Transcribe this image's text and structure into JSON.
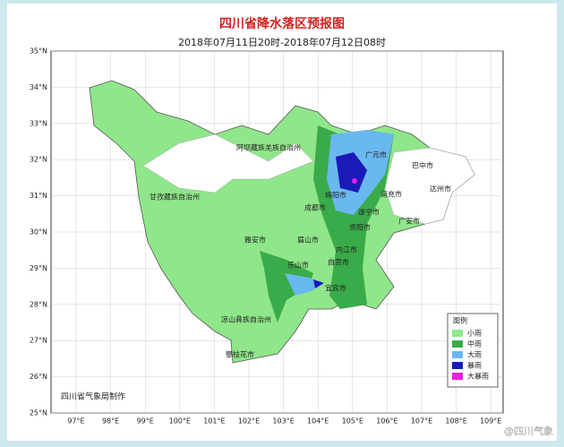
{
  "header": {
    "title": "四川省降水落区预报图",
    "subtitle": "2018年07月11日20时-2018年07月12日08时"
  },
  "axes": {
    "latitudes": [
      "35°N",
      "34°N",
      "33°N",
      "32°N",
      "31°N",
      "30°N",
      "29°N",
      "28°N",
      "27°N",
      "26°N",
      "25°N"
    ],
    "longitudes": [
      "97°E",
      "98°E",
      "99°E",
      "100°E",
      "101°E",
      "102°E",
      "103°E",
      "104°E",
      "105°E",
      "106°E",
      "107°E",
      "108°E",
      "109°E"
    ]
  },
  "places": [
    {
      "label": "阿坝藏族羌族自治州"
    },
    {
      "label": "广元市"
    },
    {
      "label": "巴中市"
    },
    {
      "label": "绵阳市"
    },
    {
      "label": "南充市"
    },
    {
      "label": "达州市"
    },
    {
      "label": "甘孜藏族自治州"
    },
    {
      "label": "成都市"
    },
    {
      "label": "遂宁市"
    },
    {
      "label": "资阳市"
    },
    {
      "label": "广安市"
    },
    {
      "label": "雅安市"
    },
    {
      "label": "眉山市"
    },
    {
      "label": "内江市"
    },
    {
      "label": "乐山市"
    },
    {
      "label": "自贡市"
    },
    {
      "label": "宜宾市"
    },
    {
      "label": "凉山彝族自治州"
    },
    {
      "label": "攀枝花市"
    }
  ],
  "legend": {
    "title": "图例",
    "items": [
      {
        "label": "小雨",
        "color": "#8fe88a"
      },
      {
        "label": "中雨",
        "color": "#3aab4a"
      },
      {
        "label": "大雨",
        "color": "#6ab8f0"
      },
      {
        "label": "暴雨",
        "color": "#1a1ab8"
      },
      {
        "label": "大暴雨",
        "color": "#e81ee8"
      }
    ]
  },
  "footer": {
    "credit": "四川省气象局制作",
    "watermark": "@四川气象"
  }
}
